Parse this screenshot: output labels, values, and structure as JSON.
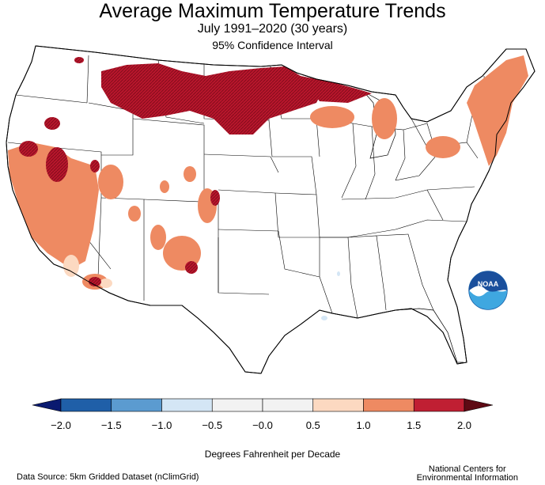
{
  "header": {
    "title": "Average Maximum Temperature Trends",
    "subtitle": "July 1991–2020 (30 years)",
    "confidence": "95% Confidence Interval"
  },
  "legend": {
    "ticks": [
      "−2.0",
      "−1.5",
      "−1.0",
      "−0.5",
      "−0.0",
      "0.5",
      "1.0",
      "1.5",
      "2.0"
    ],
    "colors": [
      "#1f5fa8",
      "#5b9bd0",
      "#d4e6f5",
      "#f2f2f2",
      "#f2f2f2",
      "#fcd9c1",
      "#ee8a62",
      "#c01f33"
    ],
    "under_color": "#0a1a70",
    "over_color": "#5e0a14",
    "units": "Degrees Fahrenheit per Decade"
  },
  "footer": {
    "source": "Data Source: 5km Gridded Dataset (nClimGrid)",
    "agency_line1": "National Centers for",
    "agency_line2": "Environmental Information"
  },
  "logo": {
    "text": "NOAA",
    "icon": "noaa-logo-icon"
  }
}
